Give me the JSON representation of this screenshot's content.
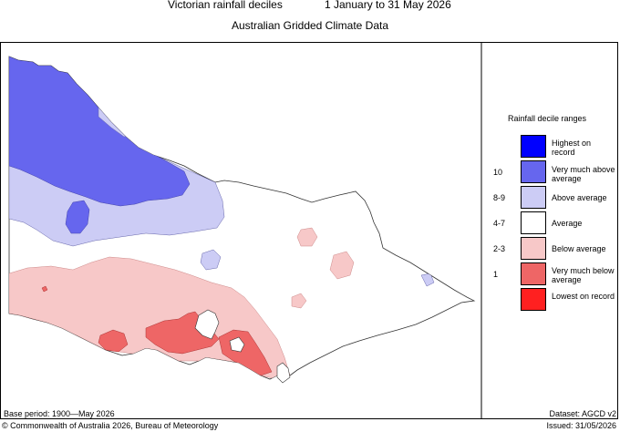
{
  "header": {
    "title_left": "Victorian rainfall deciles",
    "title_right": "1 January to 31 May 2026",
    "subtitle": "Australian Gridded Climate Data"
  },
  "legend": {
    "title": "Rainfall decile ranges",
    "items": [
      {
        "label": "Highest on record",
        "range": "",
        "color": "#0000ff"
      },
      {
        "label": "Very much above average",
        "range": "10",
        "color": "#6666ee"
      },
      {
        "label": "Above average",
        "range": "8-9",
        "color": "#ccccf5"
      },
      {
        "label": "Average",
        "range": "4-7",
        "color": "#ffffff"
      },
      {
        "label": "Below average",
        "range": "2-3",
        "color": "#f7c8c8"
      },
      {
        "label": "Very much below average",
        "range": "1",
        "color": "#ee6666"
      },
      {
        "label": "Lowest on record",
        "range": "",
        "color": "#ff2020"
      }
    ]
  },
  "footer": {
    "base_period": "Base period: 1900—May 2026",
    "dataset": "Dataset: AGCD v2",
    "copyright": "© Commonwealth of Australia 2026, Bureau of Meteorology",
    "issued": "Issued: 31/05/2026"
  }
}
